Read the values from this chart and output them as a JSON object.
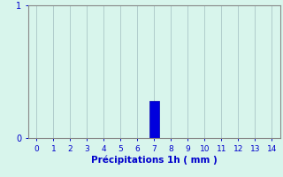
{
  "title": "",
  "xlabel": "Précipitations 1h ( mm )",
  "xlabel_color": "#0000cc",
  "background_color": "#d8f5ec",
  "bar_positions": [
    7
  ],
  "bar_heights": [
    0.28
  ],
  "bar_color": "#0000dd",
  "bar_edge_color": "#0000aa",
  "xlim": [
    -0.5,
    14.5
  ],
  "ylim": [
    0,
    1
  ],
  "xticks": [
    0,
    1,
    2,
    3,
    4,
    5,
    6,
    7,
    8,
    9,
    10,
    11,
    12,
    13,
    14
  ],
  "yticks": [
    0,
    1
  ],
  "grid_color": "#b0cccc",
  "tick_color": "#0000cc",
  "axis_color": "#888888",
  "bar_width": 0.6
}
